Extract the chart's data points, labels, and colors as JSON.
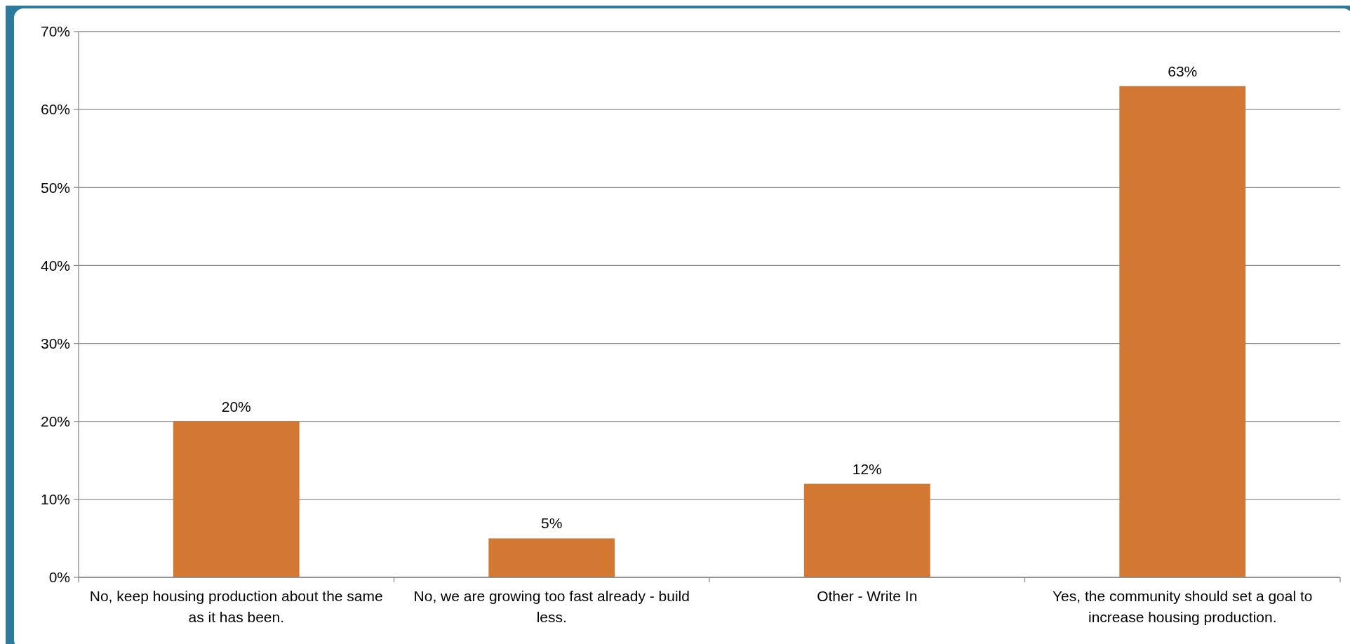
{
  "chart_data": {
    "type": "bar",
    "categories": [
      "No, keep housing production about the same as it has been.",
      "No, we are growing too fast already - build less.",
      "Other - Write In",
      "Yes, the community should set a goal to increase housing production."
    ],
    "values": [
      20,
      5,
      12,
      63
    ],
    "value_labels": [
      "20%",
      "5%",
      "12%",
      "63%"
    ],
    "color": "#d27833",
    "ylim": [
      0,
      70
    ],
    "yticks": [
      {
        "value": 0,
        "label": "0%"
      },
      {
        "value": 10,
        "label": "10%"
      },
      {
        "value": 20,
        "label": "20%"
      },
      {
        "value": 30,
        "label": "30%"
      },
      {
        "value": 40,
        "label": "40%"
      },
      {
        "value": 50,
        "label": "50%"
      },
      {
        "value": 60,
        "label": "60%"
      },
      {
        "value": 70,
        "label": "70%"
      }
    ],
    "grid": "y"
  }
}
